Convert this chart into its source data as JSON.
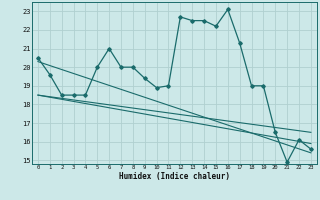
{
  "xlabel": "Humidex (Indice chaleur)",
  "background_color": "#cce8e8",
  "grid_color": "#b0d0d0",
  "line_color": "#1a6b6b",
  "xlim": [
    -0.5,
    23.5
  ],
  "ylim": [
    14.8,
    23.5
  ],
  "yticks": [
    15,
    16,
    17,
    18,
    19,
    20,
    21,
    22,
    23
  ],
  "xticks": [
    0,
    1,
    2,
    3,
    4,
    5,
    6,
    7,
    8,
    9,
    10,
    11,
    12,
    13,
    14,
    15,
    16,
    17,
    18,
    19,
    20,
    21,
    22,
    23
  ],
  "series1_y": [
    20.5,
    19.6,
    18.5,
    18.5,
    18.5,
    20.0,
    21.0,
    20.0,
    20.0,
    19.4,
    18.9,
    19.0,
    22.7,
    22.5,
    22.5,
    22.2,
    23.1,
    21.3,
    19.0,
    19.0,
    16.5,
    14.9,
    16.1,
    15.6
  ],
  "trend1_x": [
    0,
    23
  ],
  "trend1_y": [
    20.3,
    15.4
  ],
  "trend2_x": [
    0,
    23
  ],
  "trend2_y": [
    18.5,
    15.9
  ],
  "trend3_x": [
    0,
    23
  ],
  "trend3_y": [
    18.5,
    16.5
  ]
}
